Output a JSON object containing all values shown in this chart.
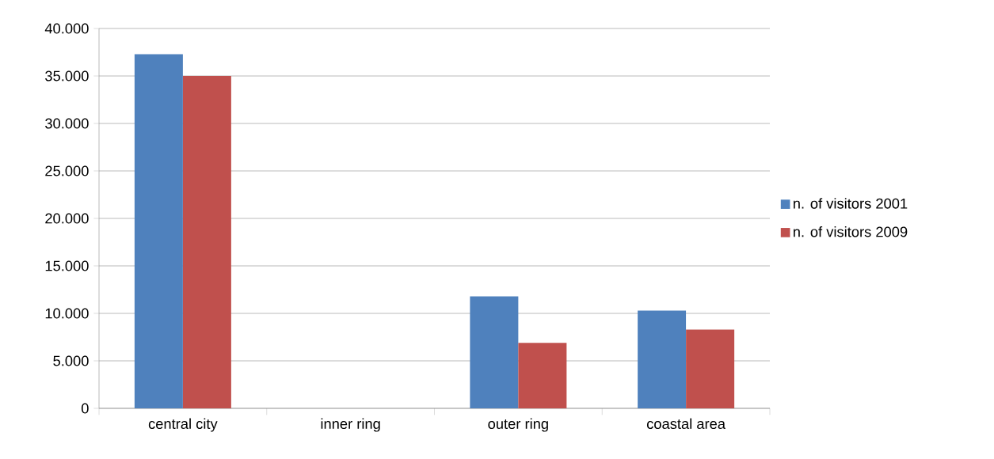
{
  "chart_data": {
    "type": "bar",
    "categories": [
      "central city",
      "inner ring",
      "outer ring",
      "coastal area"
    ],
    "series": [
      {
        "name": "n. of visitors 2001",
        "color": "#4f81bd",
        "values": [
          37300,
          null,
          11800,
          10300
        ]
      },
      {
        "name": "n. of visitors 2009",
        "color": "#c0504d",
        "values": [
          35000,
          null,
          6900,
          8300
        ]
      }
    ],
    "ylim": [
      0,
      40000
    ],
    "yticks": [
      0,
      {
        "value": 5000,
        "label": "5.000"
      },
      {
        "value": 10000,
        "label": "10.000"
      },
      {
        "value": 15000,
        "label": "15.000"
      },
      {
        "value": 20000,
        "label": "20.000"
      },
      {
        "value": 25000,
        "label": "25.000"
      },
      {
        "value": 30000,
        "label": "30.000"
      },
      {
        "value": 35000,
        "label": "35.000"
      },
      {
        "value": 40000,
        "label": "40.000"
      }
    ],
    "grid": "y",
    "legend": "right"
  }
}
